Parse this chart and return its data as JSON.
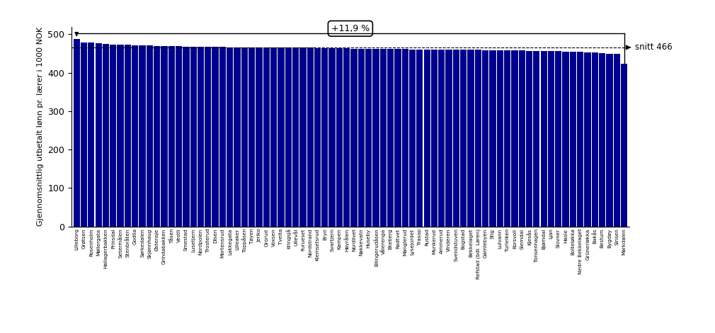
{
  "bar_color": "#00008B",
  "ylabel": "Gjennomsnittlig utbetalt lønn pr. lærer i 1000 NOK",
  "ylim": [
    0,
    520
  ],
  "yticks": [
    0,
    100,
    200,
    300,
    400,
    500
  ],
  "snitt_value": 466,
  "snitt_label": "snitt 466",
  "pct_label": "+11,9 %",
  "categories": [
    "Lilleborg",
    "Grøtsen",
    "Rosenholm",
    "Møllergata",
    "Hallagerbakken",
    "Prinsdal",
    "Setermålen",
    "Stenbråten",
    "Godlia",
    "Sørkedalen",
    "Skjønnhaug",
    "Østensje",
    "Grindabakken",
    "Tåsen",
    "Vestli",
    "Smestad",
    "Lusetjern",
    "Nordpolen",
    "Trosterud",
    "Disen",
    "Mortensrud",
    "Lakkegata",
    "Lilleaker",
    "Toppåsen",
    "Tøyen",
    "Jeriko",
    "Grorud",
    "Voxsen",
    "Tveita",
    "Kringsjå",
    "Ullevål",
    "Furueset",
    "Nordstrand",
    "Klemsetsrud",
    "Bryn",
    "Svartjern",
    "Kampen",
    "Høyrålen",
    "Nordlivet",
    "Nakkevatn",
    "Huseby",
    "Ellingerudåsen",
    "Vålerenga",
    "Ekeberg",
    "Radtvet",
    "Manglerud",
    "Lysejordet",
    "Trasop",
    "Rustad",
    "Munkerud",
    "Ammerud",
    "Vinderen",
    "Svendstuven",
    "Bogstad",
    "Bekkelaget",
    "Refstad (bdl. Løren)",
    "Gamlebyen",
    "Stig",
    "Lulvann",
    "Turleiken",
    "Korsvoll",
    "Slemdal",
    "Kjesås",
    "Tonsenhagen",
    "Bjømdal",
    "Ljan",
    "Slovner",
    "Hasle",
    "Bolteløkka",
    "Nedre Bekkelaget",
    "Grünerløkka",
    "Bakås",
    "Bestum",
    "Bygdøy",
    "Sinsen",
    "Markdalen"
  ],
  "values": [
    487,
    479,
    478,
    476,
    475,
    474,
    473,
    473,
    472,
    472,
    471,
    470,
    470,
    469,
    469,
    468,
    468,
    468,
    467,
    467,
    467,
    466,
    466,
    466,
    466,
    466,
    466,
    465,
    465,
    465,
    465,
    465,
    465,
    464,
    464,
    464,
    464,
    464,
    463,
    463,
    463,
    463,
    462,
    462,
    462,
    462,
    461,
    461,
    461,
    461,
    461,
    461,
    460,
    460,
    460,
    460,
    459,
    459,
    459,
    458,
    458,
    458,
    457,
    457,
    456,
    456,
    456,
    455,
    455,
    454,
    453,
    452,
    451,
    450,
    449,
    424
  ]
}
